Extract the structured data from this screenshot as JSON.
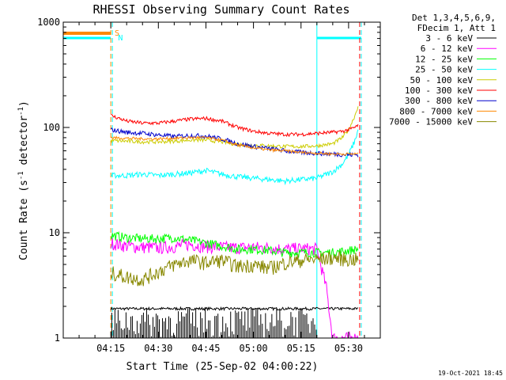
{
  "chart_data": {
    "type": "line",
    "title": "RHESSI Observing Summary Count Rates",
    "xlabel": "Start Time (25-Sep-02 04:00:22)",
    "ylabel": "Count Rate (s⁻¹ detector⁻¹)",
    "ylabel_main": "Count Rate (s",
    "ylabel_sup1": "-1",
    "ylabel_mid": " detector",
    "ylabel_sup2": "-1",
    "ylabel_end": ")",
    "y_scale": "log",
    "ylim": [
      1,
      1000
    ],
    "y_ticks": [
      {
        "value": 1,
        "label": "1"
      },
      {
        "value": 10,
        "label": "10"
      },
      {
        "value": 100,
        "label": "100"
      },
      {
        "value": 1000,
        "label": "1000"
      }
    ],
    "xlim_minutes": [
      0,
      100
    ],
    "x_ticks": [
      {
        "minute": 15,
        "label": "04:15"
      },
      {
        "minute": 30,
        "label": "04:30"
      },
      {
        "minute": 45,
        "label": "04:45"
      },
      {
        "minute": 60,
        "label": "05:00"
      },
      {
        "minute": 75,
        "label": "05:15"
      },
      {
        "minute": 90,
        "label": "05:30"
      }
    ],
    "legend": {
      "header": [
        "Det 1,3,4,5,6,9,",
        "FDecim 1, Att 1"
      ],
      "placement": "right"
    },
    "series": [
      {
        "name": "3 - 6 keV",
        "color": "#000000",
        "points": [
          [
            15,
            1.9
          ],
          [
            20,
            1.9
          ],
          [
            25,
            1.9
          ],
          [
            30,
            1.9
          ],
          [
            35,
            1.9
          ],
          [
            40,
            1.9
          ],
          [
            45,
            1.9
          ],
          [
            50,
            1.9
          ],
          [
            55,
            1.9
          ],
          [
            60,
            1.9
          ],
          [
            65,
            1.9
          ],
          [
            70,
            1.9
          ],
          [
            75,
            1.9
          ],
          [
            80,
            1.9
          ],
          [
            85,
            1.9
          ],
          [
            90,
            1.9
          ],
          [
            93,
            1.9
          ]
        ]
      },
      {
        "name": "6 - 12 keV",
        "color": "#ff00ff",
        "points": [
          [
            15,
            8
          ],
          [
            20,
            7.5
          ],
          [
            25,
            7.3
          ],
          [
            30,
            7.2
          ],
          [
            35,
            7.4
          ],
          [
            40,
            7.8
          ],
          [
            45,
            7.4
          ],
          [
            50,
            7.3
          ],
          [
            55,
            7.2
          ],
          [
            60,
            7.3
          ],
          [
            65,
            7.2
          ],
          [
            70,
            7.0
          ],
          [
            75,
            7.1
          ],
          [
            80,
            7.0
          ],
          [
            83,
            3
          ],
          [
            85,
            1
          ],
          [
            93,
            1
          ]
        ]
      },
      {
        "name": "12 - 25 keV",
        "color": "#00ff00",
        "points": [
          [
            15,
            9.5
          ],
          [
            20,
            9
          ],
          [
            25,
            8.8
          ],
          [
            30,
            8.8
          ],
          [
            35,
            9
          ],
          [
            40,
            8.5
          ],
          [
            45,
            8
          ],
          [
            50,
            7.5
          ],
          [
            55,
            7
          ],
          [
            60,
            7
          ],
          [
            65,
            6.8
          ],
          [
            70,
            6.5
          ],
          [
            75,
            6.5
          ],
          [
            80,
            6.5
          ],
          [
            85,
            6.5
          ],
          [
            90,
            6.8
          ],
          [
            93,
            7
          ]
        ]
      },
      {
        "name": "25 - 50 keV",
        "color": "#00ffff",
        "points": [
          [
            15,
            35
          ],
          [
            20,
            35
          ],
          [
            25,
            36
          ],
          [
            30,
            35
          ],
          [
            35,
            36
          ],
          [
            40,
            37
          ],
          [
            45,
            39
          ],
          [
            50,
            36
          ],
          [
            55,
            34
          ],
          [
            60,
            33
          ],
          [
            65,
            32
          ],
          [
            70,
            31
          ],
          [
            75,
            32
          ],
          [
            80,
            33
          ],
          [
            85,
            38
          ],
          [
            88,
            45
          ],
          [
            90,
            55
          ],
          [
            92,
            75
          ],
          [
            93,
            95
          ]
        ]
      },
      {
        "name": "50 - 100 keV",
        "color": "#cccc00",
        "points": [
          [
            15,
            75
          ],
          [
            20,
            74
          ],
          [
            25,
            73
          ],
          [
            30,
            73
          ],
          [
            35,
            74
          ],
          [
            40,
            76
          ],
          [
            45,
            76
          ],
          [
            50,
            73
          ],
          [
            55,
            69
          ],
          [
            60,
            68
          ],
          [
            65,
            67
          ],
          [
            70,
            66
          ],
          [
            75,
            66
          ],
          [
            80,
            67
          ],
          [
            85,
            70
          ],
          [
            88,
            80
          ],
          [
            90,
            95
          ],
          [
            92,
            130
          ],
          [
            93,
            160
          ]
        ]
      },
      {
        "name": "100 - 300 keV",
        "color": "#ff0000",
        "points": [
          [
            15,
            130
          ],
          [
            20,
            115
          ],
          [
            25,
            110
          ],
          [
            30,
            110
          ],
          [
            35,
            115
          ],
          [
            40,
            120
          ],
          [
            45,
            122
          ],
          [
            50,
            115
          ],
          [
            55,
            100
          ],
          [
            60,
            92
          ],
          [
            65,
            88
          ],
          [
            70,
            86
          ],
          [
            75,
            86
          ],
          [
            80,
            88
          ],
          [
            85,
            90
          ],
          [
            88,
            92
          ],
          [
            90,
            95
          ],
          [
            92,
            100
          ],
          [
            93,
            105
          ]
        ]
      },
      {
        "name": "300 - 800 keV",
        "color": "#0000cc",
        "points": [
          [
            15,
            95
          ],
          [
            20,
            90
          ],
          [
            25,
            88
          ],
          [
            30,
            85
          ],
          [
            35,
            82
          ],
          [
            40,
            84
          ],
          [
            45,
            83
          ],
          [
            50,
            78
          ],
          [
            55,
            70
          ],
          [
            60,
            66
          ],
          [
            65,
            63
          ],
          [
            70,
            60
          ],
          [
            75,
            58
          ],
          [
            80,
            57
          ],
          [
            85,
            56
          ],
          [
            90,
            55
          ],
          [
            93,
            55
          ]
        ]
      },
      {
        "name": "800 - 7000 keV",
        "color": "#ff8800",
        "points": [
          [
            15,
            80
          ],
          [
            20,
            79
          ],
          [
            25,
            78
          ],
          [
            30,
            78
          ],
          [
            35,
            79
          ],
          [
            40,
            80
          ],
          [
            45,
            80
          ],
          [
            50,
            76
          ],
          [
            55,
            68
          ],
          [
            60,
            64
          ],
          [
            65,
            61
          ],
          [
            70,
            60
          ],
          [
            75,
            58
          ],
          [
            80,
            57
          ],
          [
            85,
            56
          ],
          [
            90,
            56
          ],
          [
            93,
            56
          ]
        ]
      },
      {
        "name": "7000 - 15000 keV",
        "color": "#888800",
        "points": [
          [
            15,
            4.2
          ],
          [
            20,
            3.8
          ],
          [
            25,
            3.6
          ],
          [
            30,
            4.3
          ],
          [
            35,
            5
          ],
          [
            40,
            5.5
          ],
          [
            45,
            5.2
          ],
          [
            50,
            5.5
          ],
          [
            55,
            4.8
          ],
          [
            60,
            5
          ],
          [
            65,
            4.6
          ],
          [
            70,
            5.2
          ],
          [
            75,
            5.5
          ],
          [
            80,
            5.6
          ],
          [
            85,
            5.8
          ],
          [
            90,
            5.6
          ],
          [
            93,
            5.6
          ]
        ]
      }
    ],
    "annotations": [
      {
        "text": "S",
        "color": "#ff8800"
      },
      {
        "text": "N",
        "color": "#00ffff"
      }
    ],
    "vertical_markers_minutes": [
      15.5,
      80,
      94
    ]
  },
  "footer": {
    "date": "19-Oct-2021 18:45"
  }
}
